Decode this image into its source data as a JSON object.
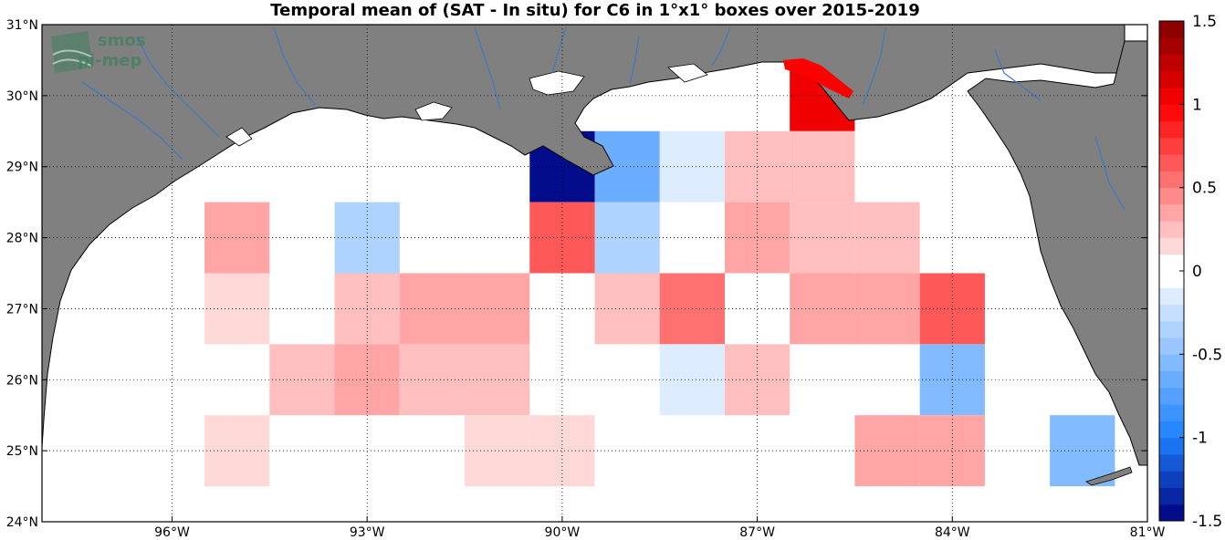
{
  "title": "Temporal mean of (SAT - In situ) for C6 in 1°x1° boxes over 2015-2019",
  "logo": {
    "line1": "smos",
    "line2": "pi-mep"
  },
  "map": {
    "lon_range": [
      -98,
      -81
    ],
    "lat_range": [
      24,
      31
    ],
    "x_ticks": [
      {
        "lon": -96,
        "label": "96°W"
      },
      {
        "lon": -93,
        "label": "93°W"
      },
      {
        "lon": -90,
        "label": "90°W"
      },
      {
        "lon": -87,
        "label": "87°W"
      },
      {
        "lon": -84,
        "label": "84°W"
      },
      {
        "lon": -81,
        "label": "81°W"
      }
    ],
    "y_ticks": [
      {
        "lat": 24,
        "label": "24°N"
      },
      {
        "lat": 25,
        "label": "25°N"
      },
      {
        "lat": 26,
        "label": "26°N"
      },
      {
        "lat": 27,
        "label": "27°N"
      },
      {
        "lat": 28,
        "label": "28°N"
      },
      {
        "lat": 29,
        "label": "29°N"
      },
      {
        "lat": 30,
        "label": "30°N"
      },
      {
        "lat": 31,
        "label": "31°N"
      }
    ],
    "grid": "dotted",
    "land_color": "#808080",
    "river_color": "#3a78c8"
  },
  "colorbar": {
    "min": -1.5,
    "max": 1.5,
    "step": 0.1,
    "tick_labels": [
      {
        "value": 1.5,
        "label": "1.5"
      },
      {
        "value": 1,
        "label": "1"
      },
      {
        "value": 0.5,
        "label": "0.5"
      },
      {
        "value": 0,
        "label": "0"
      },
      {
        "value": -0.5,
        "label": "-0.5"
      },
      {
        "value": -1,
        "label": "-1"
      },
      {
        "value": -1.5,
        "label": "-1.5"
      }
    ]
  },
  "chart_data": {
    "type": "heatmap",
    "title": "Temporal mean of (SAT - In situ) for C6 in 1°x1° boxes over 2015-2019",
    "xlabel": "",
    "ylabel": "",
    "cell_size_deg": 1,
    "value_range": [
      -1.5,
      1.5
    ],
    "cells": [
      {
        "lon": -86,
        "lat": 30,
        "value": 1.0
      },
      {
        "lon": -90,
        "lat": 29,
        "value": -1.5
      },
      {
        "lon": -89,
        "lat": 29,
        "value": -0.7
      },
      {
        "lon": -88,
        "lat": 29,
        "value": -0.15
      },
      {
        "lon": -87,
        "lat": 29,
        "value": 0.2
      },
      {
        "lon": -86,
        "lat": 29,
        "value": 0.2
      },
      {
        "lon": -95,
        "lat": 28,
        "value": 0.3
      },
      {
        "lon": -93,
        "lat": 28,
        "value": -0.35
      },
      {
        "lon": -90,
        "lat": 28,
        "value": 0.65
      },
      {
        "lon": -89,
        "lat": 28,
        "value": -0.35
      },
      {
        "lon": -87,
        "lat": 28,
        "value": 0.3
      },
      {
        "lon": -86,
        "lat": 28,
        "value": 0.2
      },
      {
        "lon": -85,
        "lat": 28,
        "value": 0.2
      },
      {
        "lon": -95,
        "lat": 27,
        "value": 0.15
      },
      {
        "lon": -93,
        "lat": 27,
        "value": 0.2
      },
      {
        "lon": -92,
        "lat": 27,
        "value": 0.3
      },
      {
        "lon": -91,
        "lat": 27,
        "value": 0.3
      },
      {
        "lon": -89,
        "lat": 27,
        "value": 0.2
      },
      {
        "lon": -88,
        "lat": 27,
        "value": 0.5
      },
      {
        "lon": -86,
        "lat": 27,
        "value": 0.3
      },
      {
        "lon": -85,
        "lat": 27,
        "value": 0.3
      },
      {
        "lon": -84,
        "lat": 27,
        "value": 0.6
      },
      {
        "lon": -94,
        "lat": 26,
        "value": 0.2
      },
      {
        "lon": -93,
        "lat": 26,
        "value": 0.35
      },
      {
        "lon": -92,
        "lat": 26,
        "value": 0.2
      },
      {
        "lon": -91,
        "lat": 26,
        "value": 0.2
      },
      {
        "lon": -88,
        "lat": 26,
        "value": -0.15
      },
      {
        "lon": -87,
        "lat": 26,
        "value": 0.2
      },
      {
        "lon": -84,
        "lat": 26,
        "value": -0.6
      },
      {
        "lon": -95,
        "lat": 25,
        "value": 0.15
      },
      {
        "lon": -91,
        "lat": 25,
        "value": 0.15
      },
      {
        "lon": -90,
        "lat": 25,
        "value": 0.15
      },
      {
        "lon": -85,
        "lat": 25,
        "value": 0.3
      },
      {
        "lon": -84,
        "lat": 25,
        "value": 0.3
      },
      {
        "lon": -82,
        "lat": 25,
        "value": -0.55
      }
    ]
  }
}
